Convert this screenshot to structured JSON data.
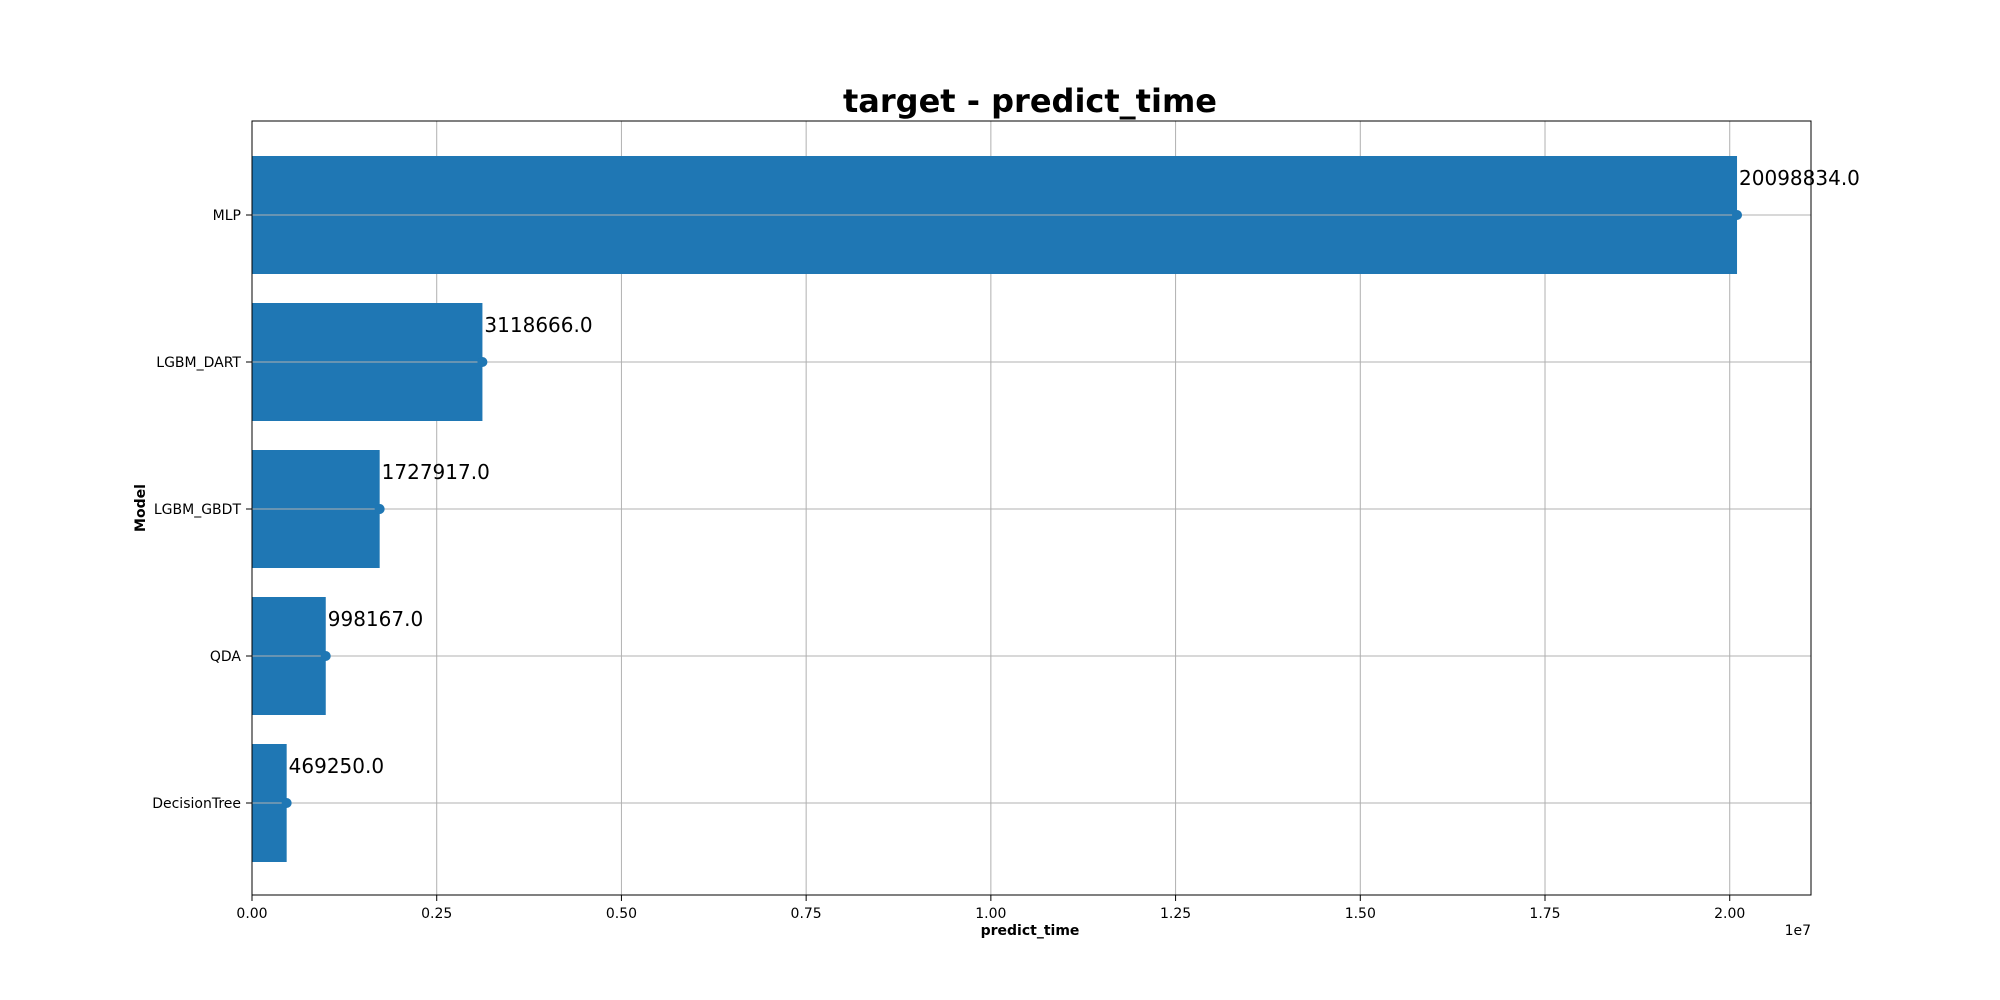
{
  "chart_data": {
    "type": "bar",
    "orientation": "horizontal",
    "title": "target - predict_time",
    "xlabel": "predict_time",
    "ylabel": "Model",
    "x_offset_text": "1e7",
    "categories": [
      "MLP",
      "LGBM_DART",
      "LGBM_GBDT",
      "QDA",
      "DecisionTree"
    ],
    "values": [
      20098834.0,
      3118666.0,
      1727917.0,
      998167.0,
      469250.0
    ],
    "data_labels": [
      "20098834.0",
      "3118666.0",
      "1727917.0",
      "998167.0",
      "469250.0"
    ],
    "xlim": [
      0,
      21100000
    ],
    "x_ticks": [
      0,
      2500000,
      5000000,
      7500000,
      10000000,
      12500000,
      15000000,
      17500000,
      20000000
    ],
    "x_tick_labels": [
      "0.00",
      "0.25",
      "0.50",
      "0.75",
      "1.00",
      "1.25",
      "1.50",
      "1.75",
      "2.00"
    ],
    "grid": true,
    "bar_color": "#1f77b4"
  }
}
